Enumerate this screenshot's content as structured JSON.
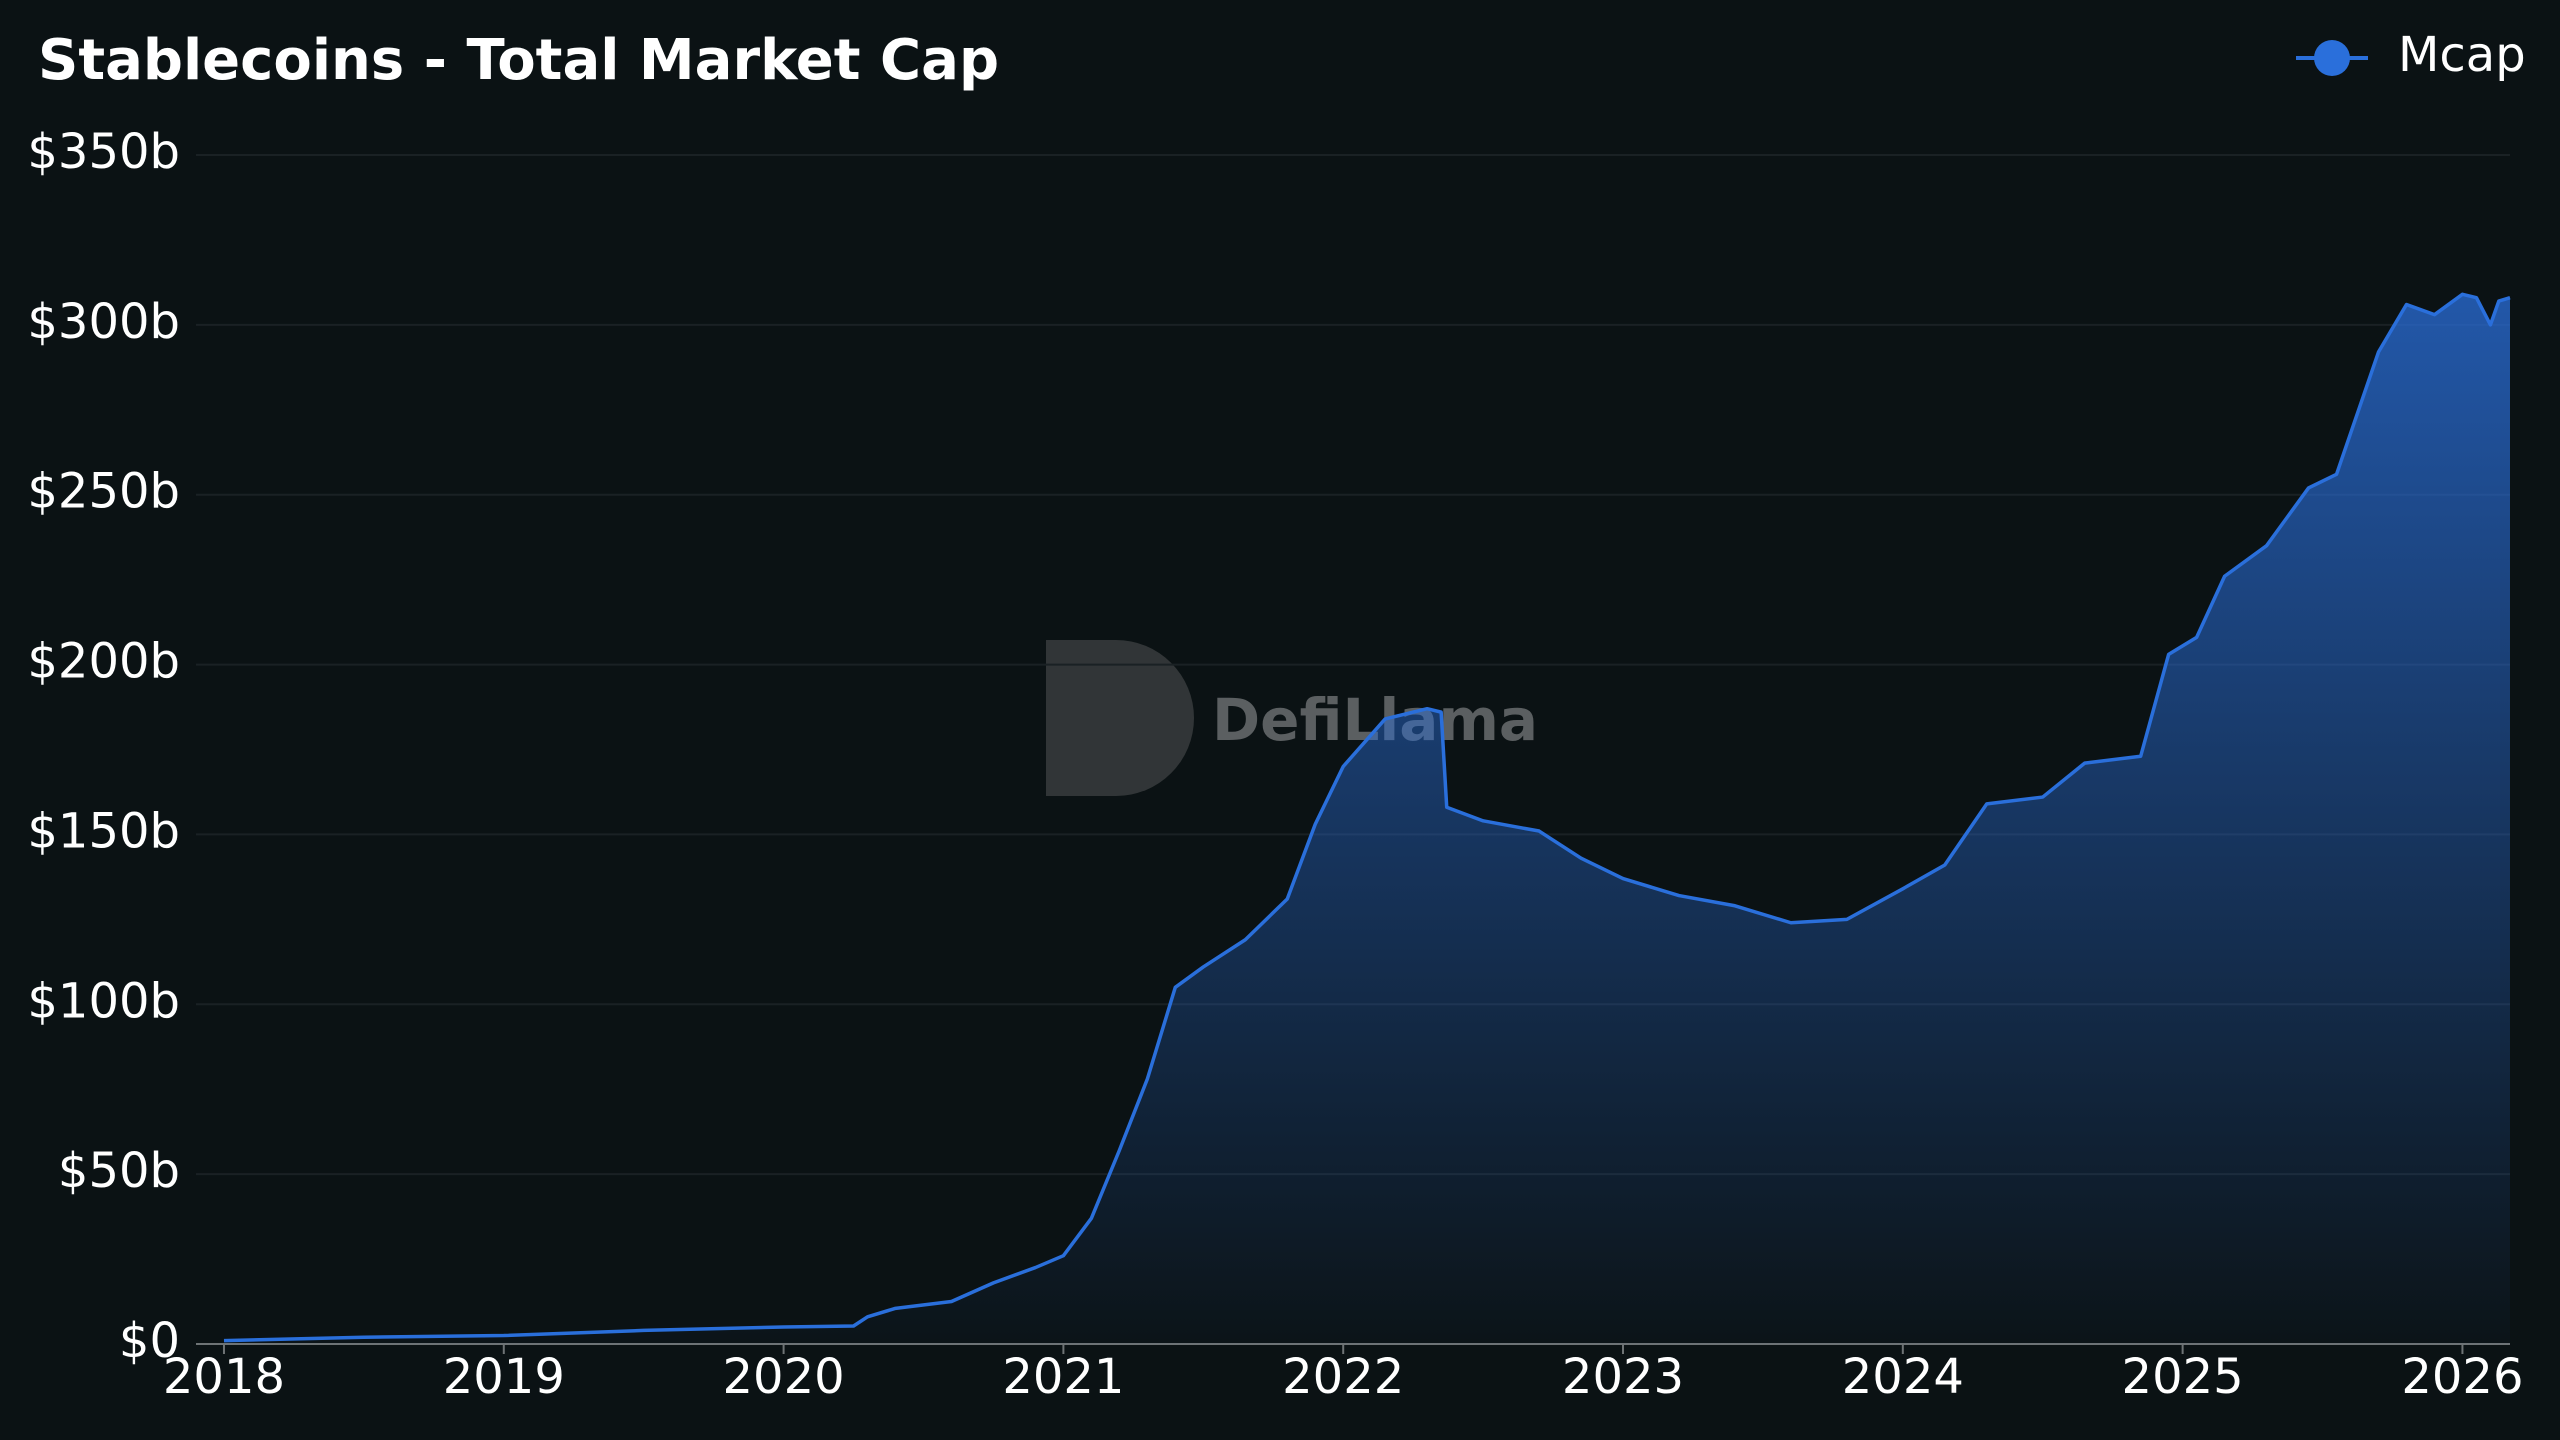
{
  "chart_data": {
    "type": "area",
    "title": "Stablecoins - Total Market Cap",
    "watermark": "DefiLlama",
    "x": [
      2018.0,
      2018.5,
      2019.0,
      2019.5,
      2020.0,
      2020.25,
      2020.3,
      2020.4,
      2020.6,
      2020.75,
      2020.9,
      2021.0,
      2021.1,
      2021.2,
      2021.3,
      2021.4,
      2021.5,
      2021.65,
      2021.8,
      2021.9,
      2022.0,
      2022.15,
      2022.3,
      2022.35,
      2022.37,
      2022.5,
      2022.7,
      2022.85,
      2023.0,
      2023.2,
      2023.4,
      2023.6,
      2023.8,
      2024.0,
      2024.15,
      2024.3,
      2024.5,
      2024.65,
      2024.85,
      2024.95,
      2025.05,
      2025.15,
      2025.3,
      2025.45,
      2025.55,
      2025.7,
      2025.8,
      2025.9,
      2026.0,
      2026.05,
      2026.1,
      2026.13,
      2026.17
    ],
    "series": [
      {
        "name": "Mcap",
        "color": "#2a6fdb",
        "values": [
          1,
          2,
          2.5,
          4,
          5,
          5.3,
          8,
          10.5,
          12.5,
          18,
          22.5,
          26,
          37,
          57,
          78,
          105,
          111,
          119,
          131,
          153,
          170,
          184,
          187,
          186,
          158,
          154,
          151,
          143,
          137,
          132,
          129,
          124,
          125,
          134,
          141,
          159,
          161,
          171,
          173,
          203,
          208,
          226,
          235,
          252,
          256,
          292,
          306,
          303,
          309,
          308,
          300,
          307,
          308
        ]
      }
    ],
    "xlim": [
      2017.9,
      2026.17
    ],
    "xticks": [
      2018,
      2019,
      2020,
      2021,
      2022,
      2023,
      2024,
      2025,
      2026
    ],
    "ylim": [
      0,
      350
    ],
    "yticks": [
      {
        "value": 0,
        "label": "$0"
      },
      {
        "value": 50,
        "label": "$50b"
      },
      {
        "value": 100,
        "label": "$100b"
      },
      {
        "value": 150,
        "label": "$150b"
      },
      {
        "value": 200,
        "label": "$200b"
      },
      {
        "value": 250,
        "label": "$250b"
      },
      {
        "value": 300,
        "label": "$300b"
      },
      {
        "value": 350,
        "label": "$350b"
      }
    ],
    "grid": true,
    "legend": "top-right"
  }
}
